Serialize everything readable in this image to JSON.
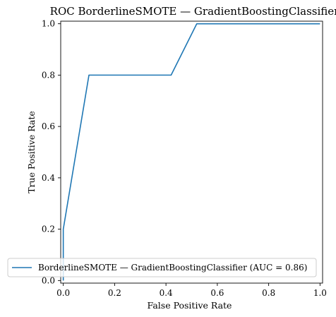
{
  "chart_data": {
    "type": "line",
    "title": "ROC BorderlineSMOTE — GradientBoostingClassifier",
    "xlabel": "False Positive Rate",
    "ylabel": "True Positive Rate",
    "xlim": [
      -0.01,
      1.01
    ],
    "ylim": [
      -0.01,
      1.01
    ],
    "xticks": [
      0.0,
      0.2,
      0.4,
      0.6,
      0.8,
      1.0
    ],
    "yticks": [
      0.0,
      0.2,
      0.4,
      0.6,
      0.8,
      1.0
    ],
    "xtick_labels": [
      "0.0",
      "0.2",
      "0.4",
      "0.6",
      "0.8",
      "1.0"
    ],
    "ytick_labels": [
      "0.0",
      "0.2",
      "0.4",
      "0.6",
      "0.8",
      "1.0"
    ],
    "grid": false,
    "legend_position": "lower-right",
    "series": [
      {
        "name": "BorderlineSMOTE — GradientBoostingClassifier (AUC = 0.86)",
        "color": "#1f77b4",
        "x": [
          0.0,
          0.0,
          0.1,
          0.42,
          0.52,
          1.0
        ],
        "y": [
          0.0,
          0.2,
          0.8,
          0.8,
          1.0,
          1.0
        ]
      }
    ]
  }
}
